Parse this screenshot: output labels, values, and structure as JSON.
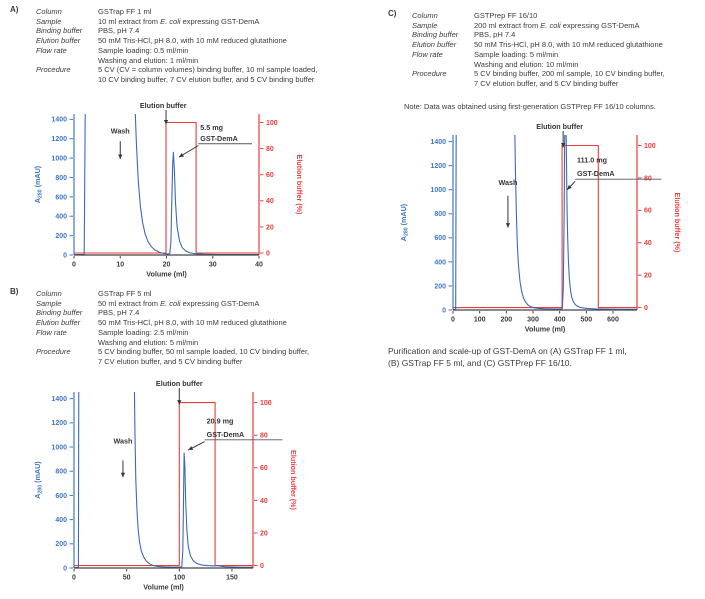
{
  "colors": {
    "absorbance_blue": "#3b6ab8",
    "elution_red": "#ee3b3c",
    "left_axis": "#3f78c8",
    "right_axis": "#ee3b3c",
    "bottom_axis": "#434346",
    "text_dark": "#3b3b3d",
    "underline_gray": "#56575b",
    "annotation": "#343437"
  },
  "caption": {
    "line1": "Purification and scale-up of GST-DemA on (A) GSTrap FF 1 ml,",
    "line2": "(B) GSTrap FF 5 ml, and (C) GSTPrep FF 16/10."
  },
  "italic_phrase": "E. coli",
  "panels": [
    {
      "id": "A",
      "label": "A)",
      "chart_index": 0,
      "params": [
        {
          "label": "Column",
          "lines": [
            "GSTrap FF 1 ml"
          ]
        },
        {
          "label": "Sample",
          "lines": [
            "10 ml extract from E. coli expressing GST-DemA"
          ]
        },
        {
          "label": "Binding buffer",
          "lines": [
            "PBS, pH 7.4"
          ]
        },
        {
          "label": "Elution buffer",
          "lines": [
            "50 mM Tris-HCl, pH 8.0, with 10 mM reduced glutathione"
          ]
        },
        {
          "label": "Flow rate",
          "lines": [
            "Sample loading: 0.5 ml/min",
            "Washing and elution: 1 ml/min"
          ]
        },
        {
          "label": "Procedure",
          "lines": [
            "5 CV (CV = column volumes) binding buffer, 10 ml sample loaded,",
            "10 CV binding buffer, 7 CV elution buffer, and 5 CV binding buffer"
          ]
        }
      ]
    },
    {
      "id": "B",
      "label": "B)",
      "chart_index": 1,
      "params": [
        {
          "label": "Column",
          "lines": [
            "GSTrap FF 5 ml"
          ]
        },
        {
          "label": "Sample",
          "lines": [
            "50 ml extract from E. coli expressing GST-DemA"
          ]
        },
        {
          "label": "Binding buffer",
          "lines": [
            "PBS, pH 7.4"
          ]
        },
        {
          "label": "Elution buffer",
          "lines": [
            "50 mM Tris-HCl, pH 8.0, with 10 mM reduced glutathione"
          ]
        },
        {
          "label": "Flow rate",
          "lines": [
            "Sample loading: 2.5 ml/min",
            "Washing and elution: 5 ml/min"
          ]
        },
        {
          "label": "Procedure",
          "lines": [
            "5 CV binding buffer, 50 ml sample loaded, 10 CV binding buffer,",
            "7 CV elution buffer, and 5 CV binding buffer"
          ]
        }
      ]
    },
    {
      "id": "C",
      "label": "C)",
      "chart_index": 2,
      "note": "Note: Data was obtained using first-generation GSTPrep FF 16/10 columns.",
      "params": [
        {
          "label": "Column",
          "lines": [
            "GSTPrep FF 16/10"
          ]
        },
        {
          "label": "Sample",
          "lines": [
            "200 ml extract from E. coli expressing GST-DemA"
          ]
        },
        {
          "label": "Binding buffer",
          "lines": [
            "PBS, pH 7.4"
          ]
        },
        {
          "label": "Elution buffer",
          "lines": [
            "50 mM Tris-HCl, pH 8.0, with 10 mM reduced glutathione"
          ]
        },
        {
          "label": "Flow rate",
          "lines": [
            "Sample loading: 5 ml/min",
            "Washing and elution: 10 ml/min"
          ]
        },
        {
          "label": "Procedure",
          "lines": [
            "5 CV binding buffer, 200 ml sample, 10 CV binding buffer,",
            "7 CV elution buffer, and 5 CV binding buffer"
          ]
        }
      ]
    }
  ],
  "chart_data": [
    {
      "type": "line",
      "panel": "A",
      "title": "",
      "xlabel": "Volume (ml)",
      "ylabel_left": {
        "pre": "A",
        "sub": "280",
        "post": " (mAU)"
      },
      "ylabel_right": "Elution buffer (%)",
      "xlim": [
        0,
        40
      ],
      "xticks": [
        0,
        10,
        20,
        30,
        40
      ],
      "ylim_left": [
        0,
        1455
      ],
      "yticks_left": [
        0,
        200,
        400,
        600,
        800,
        1000,
        1200,
        1400
      ],
      "ylim_right_scale": [
        -1.5,
        106.5
      ],
      "yticks_right": [
        0,
        20,
        40,
        60,
        80,
        100
      ],
      "legend": false,
      "grid": false,
      "series": [
        {
          "name": "A280 absorbance (mAU)",
          "axis": "left",
          "color": "#3b6ab8",
          "points": [
            [
              0,
              4
            ],
            [
              2.2,
              4
            ],
            [
              2.45,
              1600
            ],
            [
              13.15,
              1600
            ],
            [
              13.5,
              1150
            ],
            [
              13.9,
              760
            ],
            [
              14.35,
              500
            ],
            [
              14.85,
              330
            ],
            [
              15.4,
              215
            ],
            [
              16,
              140
            ],
            [
              16.7,
              88
            ],
            [
              17.5,
              52
            ],
            [
              18.4,
              30
            ],
            [
              19.3,
              17
            ],
            [
              20.2,
              11
            ],
            [
              20.7,
              12
            ],
            [
              20.95,
              130
            ],
            [
              21.15,
              560
            ],
            [
              21.35,
              940
            ],
            [
              21.5,
              1060
            ],
            [
              21.7,
              870
            ],
            [
              21.95,
              540
            ],
            [
              22.3,
              290
            ],
            [
              22.8,
              145
            ],
            [
              23.4,
              76
            ],
            [
              24.2,
              40
            ],
            [
              25.2,
              21
            ],
            [
              26.4,
              12
            ],
            [
              28,
              8
            ],
            [
              31,
              5
            ],
            [
              35,
              4
            ],
            [
              40,
              4
            ]
          ]
        },
        {
          "name": "Elution buffer (%)",
          "axis": "right",
          "color": "#ee3b3c",
          "points": [
            [
              0,
              0
            ],
            [
              19.9,
              0
            ],
            [
              19.9,
              100
            ],
            [
              26.4,
              100
            ],
            [
              26.4,
              0
            ],
            [
              40,
              0
            ]
          ]
        }
      ],
      "annotations": {
        "elution_buffer": {
          "text": "Elution buffer",
          "text_x": 19.3,
          "arrow_x": 19.9
        },
        "wash": {
          "text": "Wash",
          "x": 10,
          "label_y": 1255,
          "arrow_y1": 1175,
          "arrow_y2": 990
        },
        "peak": {
          "amount": "5.5 mg",
          "protein": "GST-DemA",
          "text_x": 27.3,
          "amount_y": 1290,
          "protein_y": 1175,
          "underline_y": 1148,
          "underline_x2": 38.5,
          "arrow": [
            26.9,
            1130,
            22.7,
            1010
          ]
        }
      }
    },
    {
      "type": "line",
      "panel": "B",
      "title": "",
      "xlabel": "Volume (ml)",
      "ylabel_left": {
        "pre": "A",
        "sub": "280",
        "post": " (mAU)"
      },
      "ylabel_right": "Elution buffer (%)",
      "xlim": [
        0,
        170
      ],
      "xticks": [
        0,
        50,
        100,
        150
      ],
      "ylim_left": [
        0,
        1455
      ],
      "yticks_left": [
        0,
        200,
        400,
        600,
        800,
        1000,
        1200,
        1400
      ],
      "ylim_right_scale": [
        -1.5,
        106.5
      ],
      "yticks_right": [
        0,
        20,
        40,
        60,
        80,
        100
      ],
      "legend": false,
      "grid": false,
      "series": [
        {
          "name": "A280 absorbance (mAU)",
          "axis": "left",
          "color": "#3b6ab8",
          "points": [
            [
              0,
              4
            ],
            [
              4.2,
              4
            ],
            [
              4.6,
              1600
            ],
            [
              57.2,
              1600
            ],
            [
              57.9,
              1100
            ],
            [
              58.7,
              730
            ],
            [
              59.7,
              490
            ],
            [
              60.9,
              325
            ],
            [
              62.3,
              212
            ],
            [
              64,
              138
            ],
            [
              66.2,
              90
            ],
            [
              68.8,
              56
            ],
            [
              72,
              33
            ],
            [
              75.5,
              20
            ],
            [
              80,
              13
            ],
            [
              86,
              9
            ],
            [
              93,
              7
            ],
            [
              100,
              7
            ],
            [
              102.4,
              9
            ],
            [
              103.3,
              140
            ],
            [
              104,
              560
            ],
            [
              104.6,
              950
            ],
            [
              105.3,
              840
            ],
            [
              106.1,
              540
            ],
            [
              107.2,
              310
            ],
            [
              108.6,
              175
            ],
            [
              110.6,
              100
            ],
            [
              113.2,
              60
            ],
            [
              116.6,
              38
            ],
            [
              121,
              26
            ],
            [
              127,
              20
            ],
            [
              133,
              17
            ],
            [
              136.5,
              20
            ],
            [
              140,
              14
            ],
            [
              144,
              10
            ],
            [
              150,
              8
            ],
            [
              159,
              6
            ],
            [
              170,
              6
            ]
          ]
        },
        {
          "name": "Elution buffer (%)",
          "axis": "right",
          "color": "#ee3b3c",
          "points": [
            [
              0,
              0
            ],
            [
              100,
              0
            ],
            [
              100,
              100
            ],
            [
              134,
              100
            ],
            [
              134,
              0
            ],
            [
              170,
              0
            ]
          ]
        }
      ],
      "annotations": {
        "elution_buffer": {
          "text": "Elution buffer",
          "text_x": 100,
          "arrow_x": 100
        },
        "wash": {
          "text": "Wash",
          "x": 46.5,
          "label_y": 1030,
          "arrow_y1": 890,
          "arrow_y2": 750
        },
        "peak": {
          "amount": "20.9 mg",
          "protein": "GST-DemA",
          "text_x": 126,
          "amount_y": 1195,
          "protein_y": 1085,
          "underline_y": 1060,
          "underline_x2": 198,
          "arrow": [
            124,
            1045,
            108.5,
            975
          ]
        }
      }
    },
    {
      "type": "line",
      "panel": "C",
      "title": "",
      "xlabel": "Volume (ml)",
      "ylabel_left": {
        "pre": "A",
        "sub": "280",
        "post": " (mAU)"
      },
      "ylabel_right": "Elution buffer (%)",
      "xlim": [
        0,
        690
      ],
      "xticks": [
        0,
        100,
        200,
        300,
        400,
        500,
        600
      ],
      "ylim_left": [
        0,
        1455
      ],
      "yticks_left": [
        0,
        200,
        400,
        600,
        800,
        1000,
        1200,
        1400
      ],
      "ylim_right_scale": [
        -1.5,
        106.5
      ],
      "yticks_right": [
        0,
        20,
        40,
        60,
        80,
        100
      ],
      "legend": false,
      "grid": false,
      "series": [
        {
          "name": "A280 absorbance (mAU)",
          "axis": "left",
          "color": "#3b6ab8",
          "points": [
            [
              0,
              4
            ],
            [
              10,
              4
            ],
            [
              12,
              1600
            ],
            [
              231,
              1600
            ],
            [
              234.5,
              1120
            ],
            [
              238,
              760
            ],
            [
              242,
              510
            ],
            [
              246.5,
              345
            ],
            [
              251.5,
              230
            ],
            [
              257.5,
              152
            ],
            [
              264.5,
              100
            ],
            [
              272.5,
              64
            ],
            [
              281.5,
              41
            ],
            [
              292,
              27
            ],
            [
              305,
              18
            ],
            [
              322,
              13
            ],
            [
              345,
              10
            ],
            [
              375,
              8
            ],
            [
              406,
              8
            ],
            [
              410,
              12
            ],
            [
              413.5,
              180
            ],
            [
              416.5,
              760
            ],
            [
              418.5,
              1350
            ],
            [
              420,
              1600
            ],
            [
              423.5,
              1600
            ],
            [
              425.5,
              1230
            ],
            [
              427.5,
              870
            ],
            [
              430,
              590
            ],
            [
              433,
              390
            ],
            [
              436.5,
              255
            ],
            [
              440.5,
              165
            ],
            [
              445.5,
              105
            ],
            [
              451.5,
              68
            ],
            [
              458.5,
              45
            ],
            [
              467.5,
              30
            ],
            [
              479,
              21
            ],
            [
              493,
              15
            ],
            [
              511,
              12
            ],
            [
              533,
              9
            ],
            [
              556,
              8
            ],
            [
              585,
              7
            ],
            [
              625,
              6
            ],
            [
              690,
              6
            ]
          ]
        },
        {
          "name": "Elution buffer (%)",
          "axis": "right",
          "color": "#ee3b3c",
          "points": [
            [
              0,
              0
            ],
            [
              409,
              0
            ],
            [
              409,
              100
            ],
            [
              545,
              100
            ],
            [
              545,
              0
            ],
            [
              690,
              0
            ]
          ]
        }
      ],
      "annotations": {
        "elution_buffer": {
          "text": "Elution buffer",
          "text_x": 400,
          "arrow_x": 413
        },
        "wash": {
          "text": "Wash",
          "x": 206,
          "label_y": 1040,
          "arrow_y1": 950,
          "arrow_y2": 685
        },
        "peak": {
          "amount": "111.0 mg",
          "protein": "GST-DemA",
          "text_x": 465,
          "amount_y": 1225,
          "protein_y": 1115,
          "underline_y": 1088,
          "underline_x2": 782,
          "arrow": [
            458,
            1070,
            428,
            1000
          ]
        }
      }
    }
  ]
}
